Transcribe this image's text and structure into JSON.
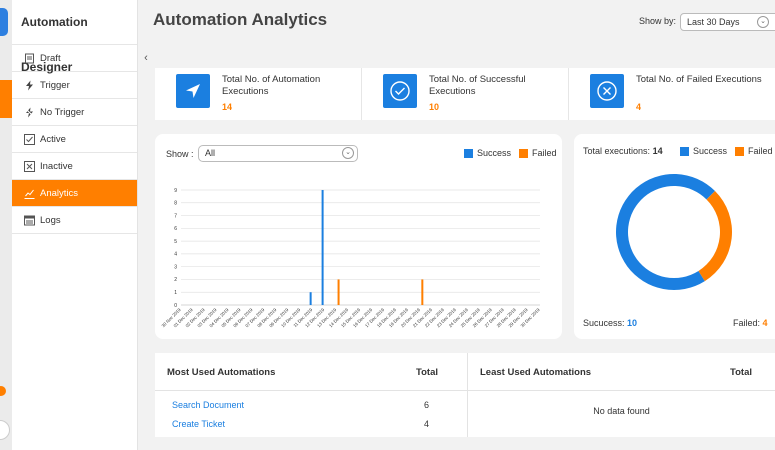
{
  "sidebar": {
    "title": "Automation Designer",
    "items": [
      {
        "label": "Draft",
        "icon": "document-icon"
      },
      {
        "label": "Trigger",
        "icon": "lightning-icon"
      },
      {
        "label": "No Trigger",
        "icon": "lightning-slash-icon"
      },
      {
        "label": "Active",
        "icon": "checkbox-icon"
      },
      {
        "label": "Inactive",
        "icon": "x-box-icon"
      },
      {
        "label": "Analytics",
        "icon": "analytics-icon",
        "active": true
      },
      {
        "label": "Logs",
        "icon": "logs-icon"
      }
    ]
  },
  "header": {
    "title": "Automation Analytics",
    "show_by_label": "Show by:",
    "range_value": "Last 30 Days"
  },
  "stats": [
    {
      "label": "Total No. of Automation Executions",
      "value": "14",
      "icon": "send-icon"
    },
    {
      "label": "Total No. of Successful Executions",
      "value": "10",
      "icon": "check-circle-icon"
    },
    {
      "label": "Total No. of Failed Executions",
      "value": "4",
      "icon": "x-circle-icon"
    }
  ],
  "chart_filter": {
    "label": "Show :",
    "value": "All"
  },
  "legend": {
    "success": "Success",
    "failed": "Failed"
  },
  "colors": {
    "success": "#1b7fe0",
    "failed": "#ff7f00",
    "accent": "#ff7f00"
  },
  "chart_data": [
    {
      "type": "bar",
      "categories": [
        "30 Nov 2019",
        "01 Dec 2019",
        "02 Dec 2019",
        "03 Dec 2019",
        "04 Dec 2019",
        "05 Dec 2019",
        "06 Dec 2019",
        "07 Dec 2019",
        "08 Dec 2019",
        "09 Dec 2019",
        "10 Dec 2019",
        "11 Dec 2019",
        "12 Dec 2019",
        "13 Dec 2019",
        "14 Dec 2019",
        "15 Dec 2019",
        "16 Dec 2019",
        "17 Dec 2019",
        "18 Dec 2019",
        "19 Dec 2019",
        "20 Dec 2019",
        "21 Dec 2019",
        "22 Dec 2019",
        "23 Dec 2019",
        "24 Dec 2019",
        "25 Dec 2019",
        "26 Dec 2019",
        "27 Dec 2019",
        "28 Dec 2019",
        "29 Dec 2019",
        "30 Dec 2019"
      ],
      "series": [
        {
          "name": "Success",
          "values": [
            0,
            0,
            0,
            0,
            0,
            0,
            0,
            0,
            0,
            0,
            0,
            1,
            9,
            0,
            0,
            0,
            0,
            0,
            0,
            0,
            0,
            0,
            0,
            0,
            0,
            0,
            0,
            0,
            0,
            0,
            0
          ]
        },
        {
          "name": "Failed",
          "values": [
            0,
            0,
            0,
            0,
            0,
            0,
            0,
            0,
            0,
            0,
            0,
            0,
            0,
            2,
            0,
            0,
            0,
            0,
            0,
            0,
            2,
            0,
            0,
            0,
            0,
            0,
            0,
            0,
            0,
            0,
            0
          ]
        }
      ],
      "yticks": [
        "0",
        "1",
        "2",
        "3",
        "4",
        "5",
        "6",
        "7",
        "8",
        "9"
      ],
      "ylim": [
        0,
        9
      ],
      "grid": true
    },
    {
      "type": "pie",
      "style": "donut",
      "title_label": "Total executions:",
      "total": "14",
      "categories": [
        "Success",
        "Failed"
      ],
      "values": [
        10,
        4
      ],
      "footer": {
        "success_label": "Sucucess:",
        "success_value": "10",
        "failed_label": "Failed:",
        "failed_value": "4"
      }
    }
  ],
  "tables": {
    "most_used": {
      "title": "Most Used Automations",
      "total_header": "Total",
      "rows": [
        {
          "name": "Search Document",
          "total": "6"
        },
        {
          "name": "Create Ticket",
          "total": "4"
        }
      ]
    },
    "least_used": {
      "title": "Least Used Automations",
      "total_header": "Total",
      "empty": "No data found"
    }
  }
}
